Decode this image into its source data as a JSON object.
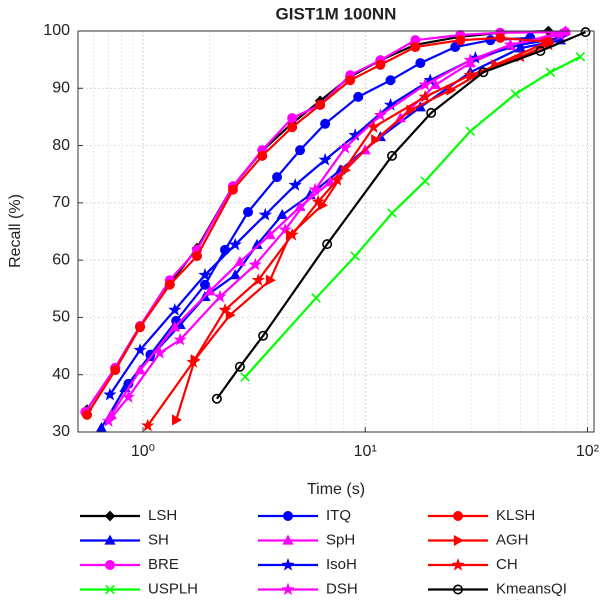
{
  "chart_data": {
    "type": "line",
    "title": "GIST1M 100NN",
    "x_label": "Time (s)",
    "y_label": "Recall (%)",
    "x_scale": "log",
    "xlim": [
      0.51,
      107
    ],
    "ylim": [
      30,
      100
    ],
    "xticks": [
      {
        "value": 1,
        "label": "10⁰"
      },
      {
        "value": 10,
        "label": "10¹"
      },
      {
        "value": 100,
        "label": "10²"
      }
    ],
    "yticks": [
      30,
      40,
      50,
      60,
      70,
      80,
      90,
      100
    ],
    "grid": true,
    "minor_grid": true,
    "legend": "below",
    "series": [
      {
        "name": "LSH",
        "color": "#000000",
        "marker": "diamond",
        "x": [
          0.56,
          0.75,
          0.97,
          1.32,
          1.75,
          2.54,
          3.44,
          4.69,
          6.27,
          8.56,
          11.7,
          16.8,
          26.8,
          40.5,
          66.7
        ],
        "values": [
          33.9,
          41.2,
          48.5,
          55.8,
          62.1,
          72.9,
          79.1,
          83.9,
          87.8,
          92.0,
          94.9,
          97.6,
          99.0,
          99.7,
          100
        ]
      },
      {
        "name": "SH",
        "color": "#0000ff",
        "marker": "triangle",
        "x": [
          0.65,
          0.83,
          1.08,
          1.47,
          1.9,
          2.6,
          3.26,
          4.23,
          5.65,
          7.71,
          11.7,
          17.7,
          29.7,
          49.9,
          75.5
        ],
        "values": [
          30.7,
          37.7,
          43.1,
          48.7,
          53.6,
          57.4,
          62.7,
          67.9,
          71.4,
          75.7,
          81.5,
          86.7,
          92.8,
          97.0,
          98.4
        ]
      },
      {
        "name": "BRE",
        "color": "#ff00ff",
        "marker": "circle",
        "x": [
          0.55,
          0.75,
          0.97,
          1.32,
          1.75,
          2.54,
          3.44,
          4.69,
          6.27,
          8.56,
          11.7,
          16.8,
          26.8,
          40.5,
          79.6
        ],
        "values": [
          33.5,
          41.2,
          48.5,
          56.5,
          61.8,
          72.9,
          79.2,
          84.8,
          87.1,
          92.3,
          94.9,
          98.4,
          99.3,
          99.7,
          99.8
        ]
      },
      {
        "name": "USPLH",
        "color": "#00ff00",
        "marker": "x",
        "x": [
          2.88,
          6.01,
          9.01,
          13.2,
          18.6,
          29.7,
          47.4,
          68.1,
          92.9
        ],
        "values": [
          39.6,
          53.4,
          60.7,
          68.2,
          73.8,
          82.5,
          89.0,
          92.8,
          95.5
        ]
      },
      {
        "name": "ITQ",
        "color": "#0000ff",
        "marker": "circle",
        "x": [
          0.86,
          1.08,
          1.41,
          1.9,
          2.34,
          2.97,
          4.01,
          5.09,
          6.6,
          9.3,
          13.0,
          17.7,
          25.4,
          36.6,
          55.3
        ],
        "values": [
          38.4,
          43.5,
          49.4,
          55.7,
          61.8,
          68.4,
          74.5,
          79.2,
          83.8,
          88.5,
          91.4,
          94.4,
          97.2,
          98.4,
          98.8
        ]
      },
      {
        "name": "SpH",
        "color": "#ff00ff",
        "marker": "triangle",
        "x": [
          0.72,
          0.97,
          1.39,
          2.0,
          2.73,
          3.73,
          5.09,
          6.95,
          10,
          14.4,
          20.7,
          29.7,
          45.0,
          79.6
        ],
        "values": [
          33.0,
          40.8,
          48.3,
          54.6,
          59.7,
          64.4,
          69.3,
          73.6,
          79.2,
          84.8,
          90.6,
          94.4,
          97.4,
          100
        ]
      },
      {
        "name": "IsoH",
        "color": "#0000ff",
        "marker": "star",
        "x": [
          0.71,
          0.97,
          1.39,
          1.9,
          2.6,
          3.55,
          4.84,
          6.6,
          9.01,
          13.0,
          19.6,
          31.3,
          49.9,
          75.5
        ],
        "values": [
          36.5,
          44.3,
          51.3,
          57.4,
          62.7,
          67.9,
          73.1,
          77.5,
          81.8,
          87.1,
          91.4,
          95.3,
          97.6,
          98.8
        ]
      },
      {
        "name": "DSH",
        "color": "#ff00ff",
        "marker": "star",
        "x": [
          0.7,
          0.86,
          1.19,
          1.47,
          2.22,
          3.2,
          4.36,
          5.95,
          8.12,
          11.7,
          18.6,
          29.7,
          45.0,
          75.5
        ],
        "values": [
          31.9,
          36.1,
          43.8,
          46.1,
          53.6,
          59.2,
          65.3,
          72.3,
          79.6,
          85.3,
          90.6,
          94.9,
          97.6,
          99.3
        ]
      },
      {
        "name": "KLSH",
        "color": "#ff0000",
        "marker": "circle",
        "x": [
          0.56,
          0.75,
          0.97,
          1.32,
          1.75,
          2.54,
          3.44,
          4.69,
          6.27,
          8.56,
          11.7,
          16.8,
          26.8,
          40.5,
          66.7
        ],
        "values": [
          33.0,
          40.8,
          48.3,
          55.7,
          60.7,
          72.3,
          78.2,
          83.2,
          87.1,
          91.4,
          94.1,
          97.2,
          98.4,
          98.8,
          98.1
        ]
      },
      {
        "name": "AGH",
        "color": "#ff0000",
        "marker": "triangle-right",
        "x": [
          1.41,
          1.71,
          2.46,
          3.73,
          4.59,
          6.4,
          8.12,
          11.1,
          16.0,
          24.2,
          38.5,
          64.7
        ],
        "values": [
          32.1,
          42.6,
          50.4,
          56.5,
          64.4,
          69.6,
          75.7,
          81.0,
          86.2,
          89.7,
          94.1,
          97.9
        ]
      },
      {
        "name": "CH",
        "color": "#ff0000",
        "marker": "star",
        "x": [
          1.05,
          1.68,
          2.34,
          3.3,
          4.69,
          6.14,
          7.48,
          10.9,
          18.6,
          29.7,
          49.9,
          66.7
        ],
        "values": [
          31.1,
          42.2,
          51.3,
          56.5,
          64.4,
          70.2,
          74.0,
          83.2,
          88.5,
          92.3,
          95.5,
          97.6
        ]
      },
      {
        "name": "KmeansQI",
        "color": "#000000",
        "marker": "open-circle",
        "x": [
          2.15,
          2.73,
          3.47,
          6.74,
          13.2,
          19.8,
          34.0,
          61.4,
          98.0
        ],
        "values": [
          35.8,
          41.4,
          46.8,
          62.8,
          78.2,
          85.7,
          92.8,
          96.5,
          99.8
        ]
      }
    ]
  }
}
